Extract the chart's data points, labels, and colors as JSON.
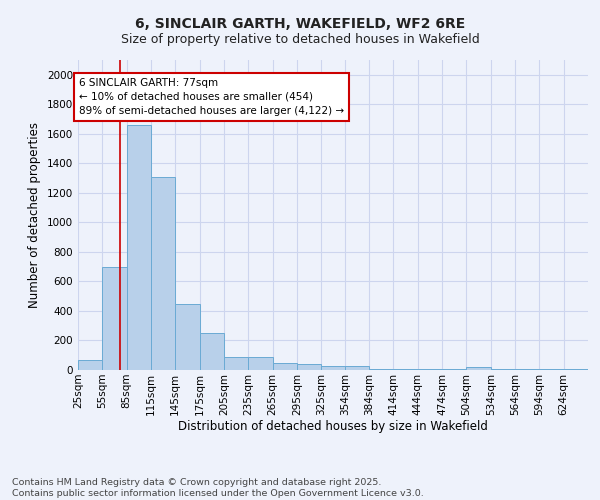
{
  "title_line1": "6, SINCLAIR GARTH, WAKEFIELD, WF2 6RE",
  "title_line2": "Size of property relative to detached houses in Wakefield",
  "xlabel": "Distribution of detached houses by size in Wakefield",
  "ylabel": "Number of detached properties",
  "footnote_line1": "Contains HM Land Registry data © Crown copyright and database right 2025.",
  "footnote_line2": "Contains public sector information licensed under the Open Government Licence v3.0.",
  "annotation_title": "6 SINCLAIR GARTH: 77sqm",
  "annotation_line1": "← 10% of detached houses are smaller (454)",
  "annotation_line2": "89% of semi-detached houses are larger (4,122) →",
  "property_size_sqm": 77,
  "bar_color": "#b8d0ea",
  "bar_edge_color": "#6aaad4",
  "red_line_color": "#cc0000",
  "background_color": "#eef2fb",
  "grid_color": "#cdd5ee",
  "categories": [
    "25sqm",
    "55sqm",
    "85sqm",
    "115sqm",
    "145sqm",
    "175sqm",
    "205sqm",
    "235sqm",
    "265sqm",
    "295sqm",
    "325sqm",
    "354sqm",
    "384sqm",
    "414sqm",
    "444sqm",
    "474sqm",
    "504sqm",
    "534sqm",
    "564sqm",
    "594sqm",
    "624sqm"
  ],
  "bin_edges": [
    25,
    55,
    85,
    115,
    145,
    175,
    205,
    235,
    265,
    295,
    325,
    354,
    384,
    414,
    444,
    474,
    504,
    534,
    564,
    594,
    624
  ],
  "bin_width": 30,
  "values": [
    70,
    700,
    1660,
    1310,
    450,
    250,
    90,
    90,
    50,
    40,
    25,
    25,
    5,
    5,
    5,
    5,
    20,
    5,
    5,
    5,
    5
  ],
  "ylim": [
    0,
    2100
  ],
  "yticks": [
    0,
    200,
    400,
    600,
    800,
    1000,
    1200,
    1400,
    1600,
    1800,
    2000
  ],
  "title_fontsize": 10,
  "subtitle_fontsize": 9,
  "axis_label_fontsize": 8.5,
  "tick_fontsize": 7.5,
  "annotation_fontsize": 7.5,
  "footnote_fontsize": 6.8
}
